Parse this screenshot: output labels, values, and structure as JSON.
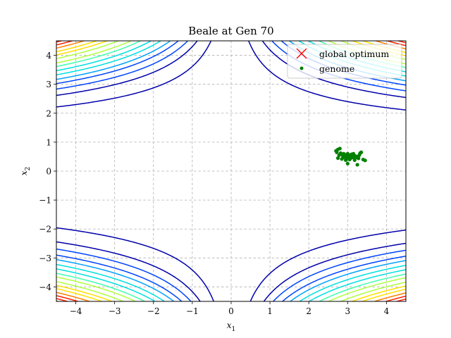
{
  "chart_data": {
    "type": "scatter",
    "title": "Beale at Gen 70",
    "xlabel": "x",
    "xlabel_sub": "1",
    "ylabel": "x",
    "ylabel_sub": "2",
    "xlim": [
      -4.5,
      4.5
    ],
    "ylim": [
      -4.5,
      4.5
    ],
    "xticks": [
      -4,
      -3,
      -2,
      -1,
      0,
      1,
      2,
      3,
      4
    ],
    "yticks": [
      -4,
      -3,
      -2,
      -1,
      0,
      1,
      2,
      3,
      4
    ],
    "grid": true,
    "legend_position": "top-right",
    "background_contours": "Beale function",
    "contour_levels": [
      2000,
      6000,
      10000,
      15000,
      20000,
      27000,
      35000,
      45000,
      55000,
      70000,
      85000,
      100000,
      120000,
      140000,
      160000,
      180000
    ],
    "contour_colormap": [
      "#0000aa",
      "#0044ff",
      "#00a0ff",
      "#00e0e0",
      "#40ffb0",
      "#b0ff40",
      "#ffe000",
      "#ff8000",
      "#ff2000",
      "#b00000"
    ],
    "series": [
      {
        "name": "global optimum",
        "marker": "x",
        "color": "#ff0000",
        "points": [
          [
            3,
            0.5
          ]
        ]
      },
      {
        "name": "genome",
        "marker": "circle",
        "color": "#008000",
        "points": [
          [
            2.7,
            0.7
          ],
          [
            2.72,
            0.65
          ],
          [
            2.75,
            0.75
          ],
          [
            2.8,
            0.78
          ],
          [
            2.78,
            0.55
          ],
          [
            2.82,
            0.62
          ],
          [
            2.85,
            0.58
          ],
          [
            2.88,
            0.52
          ],
          [
            2.9,
            0.48
          ],
          [
            2.92,
            0.55
          ],
          [
            2.95,
            0.5
          ],
          [
            2.98,
            0.45
          ],
          [
            3.0,
            0.52
          ],
          [
            3.02,
            0.48
          ],
          [
            3.05,
            0.55
          ],
          [
            3.08,
            0.5
          ],
          [
            3.1,
            0.46
          ],
          [
            3.12,
            0.53
          ],
          [
            3.15,
            0.49
          ],
          [
            3.18,
            0.45
          ],
          [
            3.2,
            0.52
          ],
          [
            3.22,
            0.47
          ],
          [
            3.25,
            0.5
          ],
          [
            3.28,
            0.44
          ],
          [
            3.3,
            0.55
          ],
          [
            3.32,
            0.62
          ],
          [
            3.35,
            0.65
          ],
          [
            3.4,
            0.4
          ],
          [
            3.45,
            0.37
          ],
          [
            2.75,
            0.45
          ],
          [
            2.85,
            0.42
          ],
          [
            2.95,
            0.38
          ],
          [
            3.0,
            0.26
          ],
          [
            3.05,
            0.4
          ],
          [
            3.1,
            0.58
          ],
          [
            3.15,
            0.6
          ],
          [
            2.9,
            0.6
          ],
          [
            3.0,
            0.6
          ],
          [
            3.25,
            0.22
          ],
          [
            3.18,
            0.38
          ],
          [
            2.96,
            0.56
          ],
          [
            3.06,
            0.44
          ]
        ]
      }
    ]
  }
}
